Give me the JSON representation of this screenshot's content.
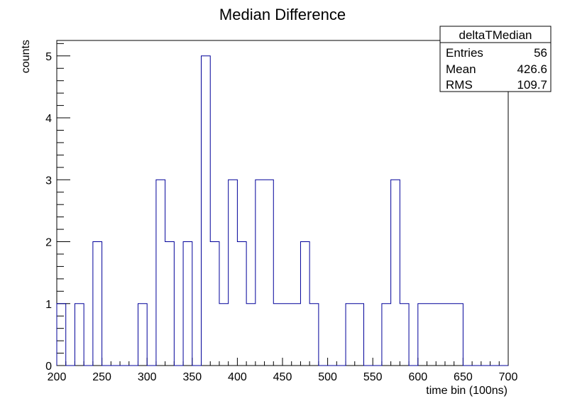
{
  "chart_data": {
    "type": "bar",
    "title": "Median Difference",
    "xlabel": "time bin (100ns)",
    "ylabel": "counts",
    "xlim": [
      200,
      700
    ],
    "ylim": [
      0,
      5.25
    ],
    "bin_width": 10,
    "x_ticks": [
      200,
      250,
      300,
      350,
      400,
      450,
      500,
      550,
      600,
      650,
      700
    ],
    "y_ticks": [
      0,
      1,
      2,
      3,
      4,
      5
    ],
    "bins": [
      {
        "x": 200,
        "count": 1
      },
      {
        "x": 210,
        "count": 0
      },
      {
        "x": 220,
        "count": 1
      },
      {
        "x": 230,
        "count": 0
      },
      {
        "x": 240,
        "count": 2
      },
      {
        "x": 250,
        "count": 0
      },
      {
        "x": 260,
        "count": 0
      },
      {
        "x": 270,
        "count": 0
      },
      {
        "x": 280,
        "count": 0
      },
      {
        "x": 290,
        "count": 1
      },
      {
        "x": 300,
        "count": 0
      },
      {
        "x": 310,
        "count": 3
      },
      {
        "x": 320,
        "count": 2
      },
      {
        "x": 330,
        "count": 0
      },
      {
        "x": 340,
        "count": 2
      },
      {
        "x": 350,
        "count": 0
      },
      {
        "x": 360,
        "count": 5
      },
      {
        "x": 370,
        "count": 2
      },
      {
        "x": 380,
        "count": 1
      },
      {
        "x": 390,
        "count": 3
      },
      {
        "x": 400,
        "count": 2
      },
      {
        "x": 410,
        "count": 1
      },
      {
        "x": 420,
        "count": 3
      },
      {
        "x": 430,
        "count": 3
      },
      {
        "x": 440,
        "count": 1
      },
      {
        "x": 450,
        "count": 1
      },
      {
        "x": 460,
        "count": 1
      },
      {
        "x": 470,
        "count": 2
      },
      {
        "x": 480,
        "count": 1
      },
      {
        "x": 490,
        "count": 0
      },
      {
        "x": 500,
        "count": 0
      },
      {
        "x": 510,
        "count": 0
      },
      {
        "x": 520,
        "count": 1
      },
      {
        "x": 530,
        "count": 1
      },
      {
        "x": 540,
        "count": 0
      },
      {
        "x": 550,
        "count": 0
      },
      {
        "x": 560,
        "count": 1
      },
      {
        "x": 570,
        "count": 3
      },
      {
        "x": 580,
        "count": 1
      },
      {
        "x": 590,
        "count": 0
      },
      {
        "x": 600,
        "count": 1
      },
      {
        "x": 610,
        "count": 1
      },
      {
        "x": 620,
        "count": 1
      },
      {
        "x": 630,
        "count": 1
      },
      {
        "x": 640,
        "count": 1
      },
      {
        "x": 650,
        "count": 0
      },
      {
        "x": 660,
        "count": 0
      },
      {
        "x": 670,
        "count": 0
      },
      {
        "x": 680,
        "count": 0
      },
      {
        "x": 690,
        "count": 0
      }
    ],
    "line_color": "#000099",
    "stats_box": {
      "title": "deltaTMedian",
      "rows": [
        {
          "label": "Entries",
          "value": "56"
        },
        {
          "label": "Mean",
          "value": "426.6"
        },
        {
          "label": "RMS",
          "value": "109.7"
        }
      ],
      "placement": "top-right"
    }
  }
}
